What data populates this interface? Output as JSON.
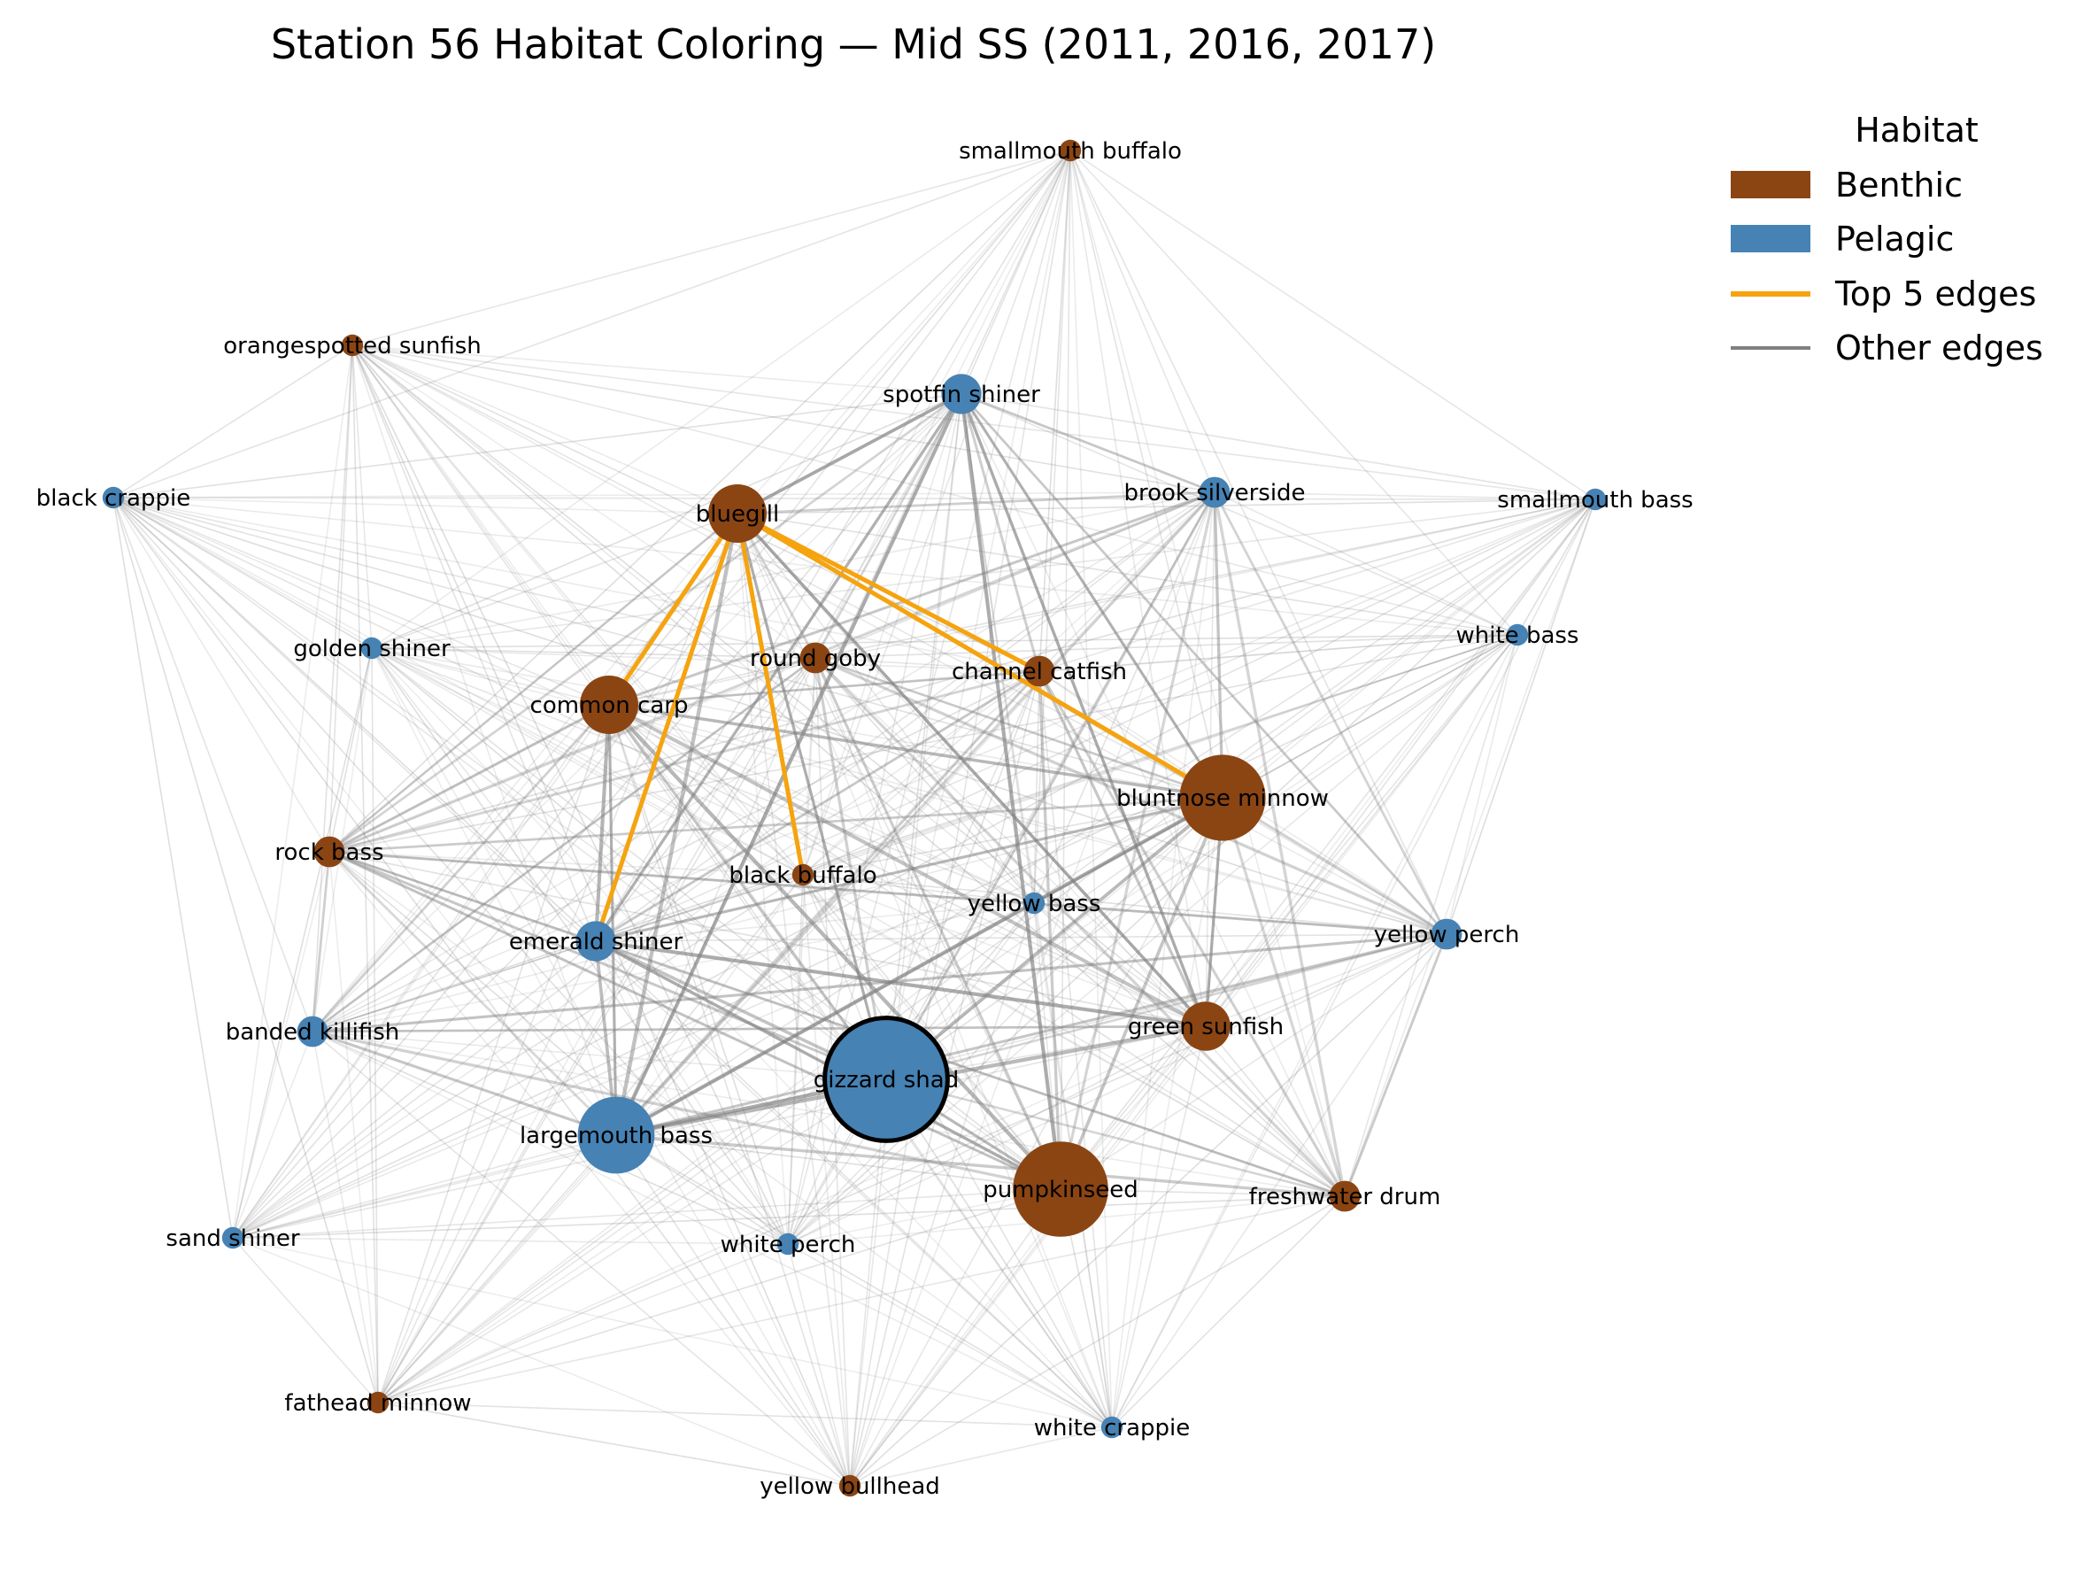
{
  "title": "Station 56 Habitat Coloring — Mid SS  (2011, 2016, 2017)",
  "colors": {
    "Benthic": "#8B4513",
    "Pelagic": "#4682B4",
    "top_edge": "#F5A30F",
    "other_edge": "#808080",
    "focal_outline": "#000000"
  },
  "legend": {
    "title": "Habitat",
    "items": [
      {
        "label": "Benthic",
        "kind": "patch",
        "color": "#8B4513"
      },
      {
        "label": "Pelagic",
        "kind": "patch",
        "color": "#4682B4"
      },
      {
        "label": "Top 5 edges",
        "kind": "line",
        "color": "#F5A30F"
      },
      {
        "label": "Other edges",
        "kind": "line",
        "color": "#808080"
      }
    ]
  },
  "nodes": [
    {
      "name": "smallmouth buffalo",
      "habitat": "Benthic",
      "size": 1
    },
    {
      "name": "orangespotted sunfish",
      "habitat": "Benthic",
      "size": 1
    },
    {
      "name": "spotfin shiner",
      "habitat": "Pelagic",
      "size": 3
    },
    {
      "name": "black crappie",
      "habitat": "Pelagic",
      "size": 1
    },
    {
      "name": "bluegill",
      "habitat": "Benthic",
      "size": 5
    },
    {
      "name": "brook silverside",
      "habitat": "Pelagic",
      "size": 2
    },
    {
      "name": "smallmouth bass",
      "habitat": "Pelagic",
      "size": 1
    },
    {
      "name": "white bass",
      "habitat": "Pelagic",
      "size": 1
    },
    {
      "name": "golden shiner",
      "habitat": "Pelagic",
      "size": 1
    },
    {
      "name": "round goby",
      "habitat": "Benthic",
      "size": 2
    },
    {
      "name": "channel catfish",
      "habitat": "Benthic",
      "size": 2
    },
    {
      "name": "common carp",
      "habitat": "Benthic",
      "size": 5
    },
    {
      "name": "bluntnose minnow",
      "habitat": "Benthic",
      "size": 8
    },
    {
      "name": "rock bass",
      "habitat": "Benthic",
      "size": 2
    },
    {
      "name": "black buffalo",
      "habitat": "Benthic",
      "size": 1
    },
    {
      "name": "yellow bass",
      "habitat": "Pelagic",
      "size": 1
    },
    {
      "name": "yellow perch",
      "habitat": "Pelagic",
      "size": 2
    },
    {
      "name": "emerald shiner",
      "habitat": "Pelagic",
      "size": 3
    },
    {
      "name": "banded killifish",
      "habitat": "Pelagic",
      "size": 2
    },
    {
      "name": "green sunfish",
      "habitat": "Benthic",
      "size": 4
    },
    {
      "name": "gizzard shad",
      "habitat": "Pelagic",
      "size": 12,
      "focal": true
    },
    {
      "name": "largemouth bass",
      "habitat": "Pelagic",
      "size": 7
    },
    {
      "name": "pumpkinseed",
      "habitat": "Benthic",
      "size": 9
    },
    {
      "name": "freshwater drum",
      "habitat": "Benthic",
      "size": 2
    },
    {
      "name": "sand shiner",
      "habitat": "Pelagic",
      "size": 1
    },
    {
      "name": "white perch",
      "habitat": "Pelagic",
      "size": 1
    },
    {
      "name": "fathead minnow",
      "habitat": "Benthic",
      "size": 1
    },
    {
      "name": "white crappie",
      "habitat": "Pelagic",
      "size": 1
    },
    {
      "name": "yellow bullhead",
      "habitat": "Benthic",
      "size": 1
    }
  ],
  "top_edges": [
    [
      "bluegill",
      "common carp"
    ],
    [
      "bluegill",
      "emerald shiner"
    ],
    [
      "bluegill",
      "black buffalo"
    ],
    [
      "bluegill",
      "channel catfish"
    ],
    [
      "bluegill",
      "bluntnose minnow"
    ]
  ]
}
